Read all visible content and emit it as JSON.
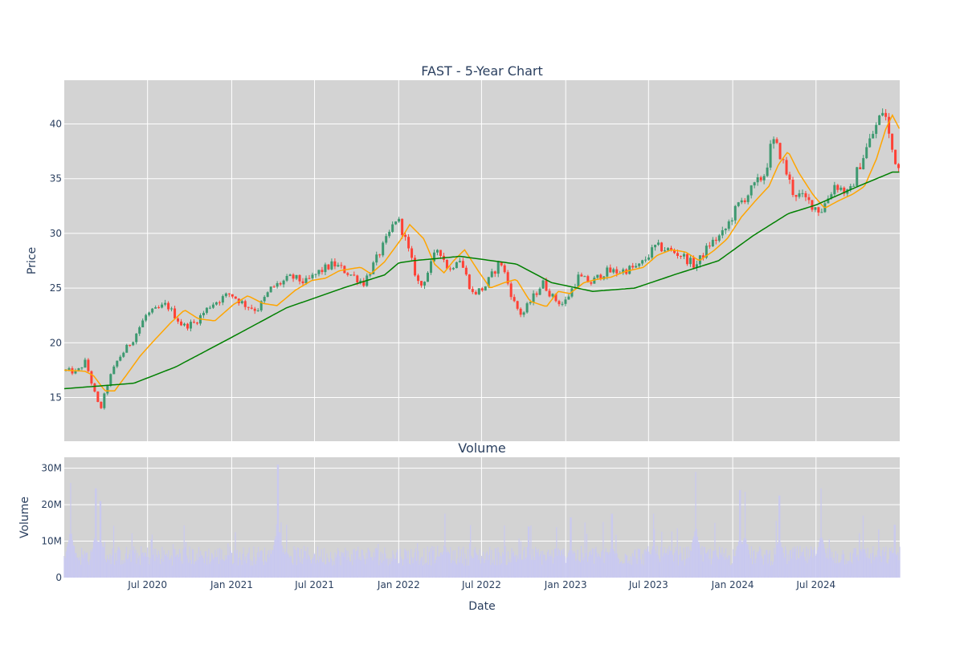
{
  "chart_data": [
    {
      "type": "candlestick",
      "title": "FAST - 5-Year Chart",
      "ylabel": "Price",
      "xlabel": "",
      "x_range": [
        "2020-01-01",
        "2024-12-31"
      ],
      "ylim": [
        11,
        44
      ],
      "yticks": [
        15,
        20,
        25,
        30,
        35,
        40
      ],
      "grid": true,
      "background": "#d3d3d3",
      "up_color": "#3d9970",
      "down_color": "#ff4136",
      "price_anchors": {
        "dates": [
          "2020-01-01",
          "2020-02-01",
          "2020-02-20",
          "2020-03-10",
          "2020-03-23",
          "2020-04-10",
          "2020-05-01",
          "2020-06-01",
          "2020-07-01",
          "2020-08-15",
          "2020-09-20",
          "2020-10-15",
          "2020-11-20",
          "2021-01-01",
          "2021-02-01",
          "2021-03-01",
          "2021-04-01",
          "2021-05-15",
          "2021-06-15",
          "2021-07-15",
          "2021-08-15",
          "2021-10-01",
          "2021-10-20",
          "2021-11-15",
          "2021-12-10",
          "2021-12-31",
          "2022-01-15",
          "2022-02-01",
          "2022-02-20",
          "2022-03-15",
          "2022-04-01",
          "2022-04-25",
          "2022-05-15",
          "2022-06-15",
          "2022-07-10",
          "2022-08-15",
          "2022-09-15",
          "2022-10-01",
          "2022-10-15",
          "2022-11-15",
          "2022-12-10",
          "2022-12-31",
          "2023-02-01",
          "2023-03-01",
          "2023-04-01",
          "2023-05-01",
          "2023-06-15",
          "2023-07-20",
          "2023-08-15",
          "2023-09-15",
          "2023-10-15",
          "2023-11-15",
          "2023-12-15",
          "2024-01-15",
          "2024-02-15",
          "2024-03-15",
          "2024-03-31",
          "2024-04-15",
          "2024-05-15",
          "2024-06-15",
          "2024-07-15",
          "2024-08-15",
          "2024-09-15",
          "2024-10-01",
          "2024-10-20",
          "2024-11-15",
          "2024-11-30",
          "2024-12-15",
          "2024-12-31"
        ],
        "values": [
          17.5,
          17.3,
          18.3,
          15.5,
          13.8,
          16.5,
          18.5,
          20.2,
          22.5,
          23.5,
          21.5,
          21.8,
          23.5,
          24.5,
          23.5,
          23.0,
          25.0,
          26.0,
          25.5,
          26.5,
          27.2,
          26.0,
          25.5,
          27.5,
          29.5,
          31.5,
          30.0,
          27.5,
          25.0,
          27.0,
          28.8,
          26.5,
          28.0,
          24.5,
          25.0,
          27.5,
          23.5,
          22.5,
          23.5,
          25.5,
          24.0,
          23.5,
          26.0,
          25.5,
          26.5,
          26.5,
          27.0,
          28.8,
          28.5,
          28.0,
          27.0,
          29.0,
          30.0,
          32.5,
          34.0,
          35.5,
          38.5,
          37.5,
          33.8,
          33.0,
          32.0,
          34.5,
          33.5,
          35.5,
          37.5,
          40.0,
          41.5,
          38.0,
          36.0
        ]
      },
      "series": [
        {
          "type": "line",
          "color": "#ffa500",
          "window_days": 28,
          "dates": [
            "2020-01-01",
            "2020-02-15",
            "2020-03-05",
            "2020-03-30",
            "2020-04-20",
            "2020-05-15",
            "2020-06-15",
            "2020-07-15",
            "2020-08-20",
            "2020-09-20",
            "2020-10-20",
            "2020-11-25",
            "2021-01-05",
            "2021-02-05",
            "2021-03-10",
            "2021-04-10",
            "2021-05-20",
            "2021-06-25",
            "2021-07-25",
            "2021-08-25",
            "2021-10-10",
            "2021-11-01",
            "2021-12-01",
            "2022-01-05",
            "2022-01-25",
            "2022-02-25",
            "2022-03-20",
            "2022-04-10",
            "2022-05-01",
            "2022-05-25",
            "2022-06-25",
            "2022-07-20",
            "2022-08-20",
            "2022-09-15",
            "2022-10-15",
            "2022-11-20",
            "2022-12-15",
            "2023-01-10",
            "2023-02-10",
            "2023-03-10",
            "2023-04-10",
            "2023-05-10",
            "2023-06-20",
            "2023-07-20",
            "2023-08-20",
            "2023-09-20",
            "2023-10-20",
            "2023-11-20",
            "2023-12-20",
            "2024-01-20",
            "2024-02-20",
            "2024-03-20",
            "2024-04-10",
            "2024-05-01",
            "2024-05-25",
            "2024-06-25",
            "2024-07-20",
            "2024-08-20",
            "2024-09-20",
            "2024-10-15",
            "2024-11-10",
            "2024-12-01",
            "2024-12-15",
            "2024-12-31"
          ],
          "values": [
            17.5,
            17.4,
            17.0,
            15.6,
            15.6,
            17.0,
            18.8,
            20.2,
            21.8,
            23.0,
            22.2,
            22.0,
            23.5,
            24.3,
            23.6,
            23.4,
            24.8,
            25.7,
            25.9,
            26.6,
            26.9,
            26.3,
            27.4,
            29.4,
            30.8,
            29.5,
            27.2,
            26.4,
            27.5,
            28.5,
            26.5,
            25.0,
            25.5,
            25.8,
            23.8,
            23.3,
            24.7,
            24.5,
            25.5,
            25.8,
            26.0,
            26.5,
            26.9,
            28.0,
            28.5,
            28.3,
            27.5,
            28.4,
            29.5,
            31.5,
            33.0,
            34.3,
            36.3,
            37.5,
            35.5,
            33.5,
            32.3,
            33.0,
            33.6,
            34.3,
            36.8,
            39.6,
            40.8,
            39.5
          ]
        },
        {
          "type": "line",
          "color": "#008000",
          "window_days": 200,
          "dates": [
            "2020-01-01",
            "2020-06-01",
            "2020-09-01",
            "2021-01-01",
            "2021-05-01",
            "2021-09-01",
            "2021-12-01",
            "2022-01-01",
            "2022-02-01",
            "2022-05-15",
            "2022-09-15",
            "2022-12-01",
            "2023-03-01",
            "2023-06-01",
            "2023-09-01",
            "2023-12-01",
            "2024-02-15",
            "2024-05-01",
            "2024-07-01",
            "2024-10-01",
            "2024-12-15",
            "2024-12-31"
          ],
          "values": [
            15.8,
            16.3,
            17.8,
            20.5,
            23.2,
            25.0,
            26.2,
            27.3,
            27.5,
            27.9,
            27.2,
            25.5,
            24.7,
            25.0,
            26.3,
            27.5,
            29.8,
            31.8,
            32.6,
            34.3,
            35.6,
            35.6
          ]
        }
      ]
    },
    {
      "type": "bar",
      "title": "Volume",
      "ylabel": "Volume",
      "xlabel": "Date",
      "x_range": [
        "2020-01-01",
        "2024-12-31"
      ],
      "ylim": [
        0,
        33000000
      ],
      "yticks": [
        {
          "value": 0,
          "label": "0"
        },
        {
          "value": 10000000,
          "label": "10M"
        },
        {
          "value": 20000000,
          "label": "20M"
        },
        {
          "value": 30000000,
          "label": "30M"
        }
      ],
      "xticks": [
        {
          "date": "2020-07-01",
          "label": "Jul 2020"
        },
        {
          "date": "2021-01-01",
          "label": "Jan 2021"
        },
        {
          "date": "2021-07-01",
          "label": "Jul 2021"
        },
        {
          "date": "2022-01-01",
          "label": "Jan 2022"
        },
        {
          "date": "2022-07-01",
          "label": "Jul 2022"
        },
        {
          "date": "2023-01-01",
          "label": "Jan 2023"
        },
        {
          "date": "2023-07-01",
          "label": "Jul 2023"
        },
        {
          "date": "2024-01-01",
          "label": "Jan 2024"
        },
        {
          "date": "2024-07-01",
          "label": "Jul 2024"
        }
      ],
      "bar_color": "#c9c9f0",
      "grid": true,
      "background": "#d3d3d3",
      "baseline_volume": 6000000,
      "spikes": [
        {
          "date": "2020-01-15",
          "value": 26000000
        },
        {
          "date": "2020-03-10",
          "value": 24500000
        },
        {
          "date": "2020-03-20",
          "value": 21000000
        },
        {
          "date": "2021-04-12",
          "value": 31000000
        },
        {
          "date": "2021-05-01",
          "value": 14500000
        },
        {
          "date": "2022-04-12",
          "value": 17500000
        },
        {
          "date": "2022-10-12",
          "value": 14000000
        },
        {
          "date": "2023-01-12",
          "value": 16500000
        },
        {
          "date": "2023-04-12",
          "value": 17500000
        },
        {
          "date": "2023-07-12",
          "value": 17500000
        },
        {
          "date": "2023-10-12",
          "value": 29000000
        },
        {
          "date": "2024-01-17",
          "value": 24000000
        },
        {
          "date": "2024-01-28",
          "value": 23500000
        },
        {
          "date": "2024-04-12",
          "value": 22500000
        },
        {
          "date": "2024-07-12",
          "value": 24500000
        },
        {
          "date": "2024-10-12",
          "value": 17000000
        },
        {
          "date": "2024-12-20",
          "value": 14500000
        }
      ]
    }
  ]
}
